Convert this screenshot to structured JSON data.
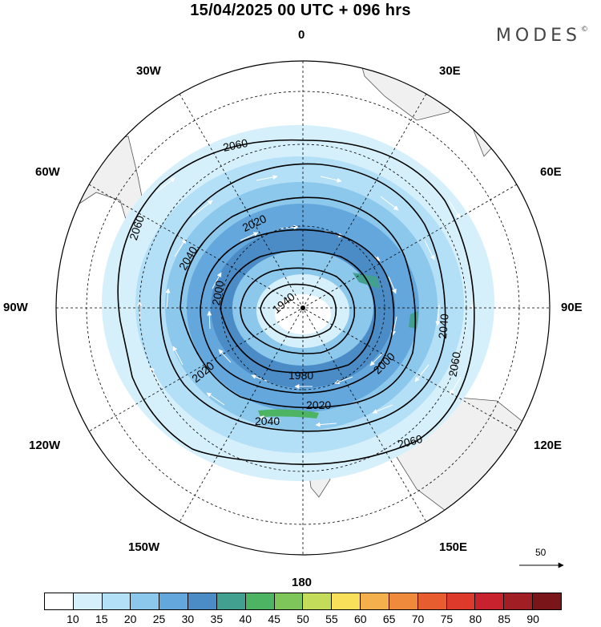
{
  "header": {
    "title": "15/04/2025  00 UTC  + 096 hrs",
    "brand": "MODES",
    "brand_mark": "©"
  },
  "longitude_labels": {
    "l0": "0",
    "l30e": "30E",
    "l60e": "60E",
    "l90e": "90E",
    "l120e": "120E",
    "l150e": "150E",
    "l180": "180",
    "l150w": "150W",
    "l120w": "120W",
    "l90w": "90W",
    "l60w": "60W",
    "l30w": "30W"
  },
  "contour_labels": [
    "2060",
    "2060",
    "2060",
    "2060",
    "2040",
    "2040",
    "2040",
    "2020",
    "2020",
    "2020",
    "2000",
    "2000",
    "1980",
    "1940"
  ],
  "reference_vector": {
    "label": "50"
  },
  "colorbar": {
    "labels": [
      "10",
      "15",
      "20",
      "25",
      "30",
      "35",
      "40",
      "45",
      "50",
      "55",
      "60",
      "65",
      "70",
      "75",
      "80",
      "85",
      "90"
    ],
    "colors": [
      "#ffffff",
      "#d6f0fb",
      "#b4e0f7",
      "#8cc7ec",
      "#64a7dd",
      "#4b8cc7",
      "#41a08f",
      "#4cb462",
      "#7fc65a",
      "#c3dc5a",
      "#f9e05a",
      "#f4b04c",
      "#ef8a3c",
      "#e85d2f",
      "#de3a2c",
      "#c7222d",
      "#a01e24",
      "#7a1619"
    ]
  }
}
